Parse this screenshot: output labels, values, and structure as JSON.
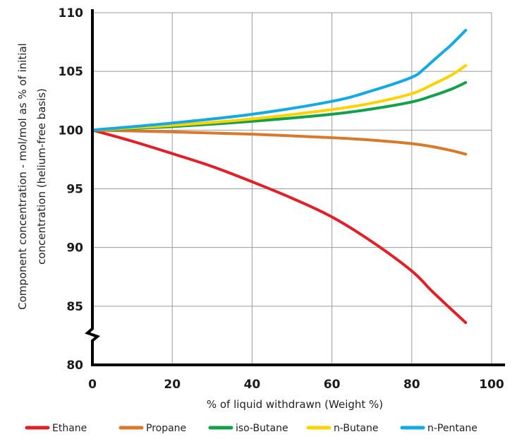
{
  "chart_data": {
    "type": "line",
    "xlabel": "% of liquid withdrawn (Weight %)",
    "ylabel_lines": [
      "Component concentration - mol/mol as % of initial",
      "concentration (helium-free basis)"
    ],
    "xlim": [
      0,
      100
    ],
    "ylim": [
      80,
      110
    ],
    "x_ticks": [
      0,
      20,
      40,
      60,
      80,
      100
    ],
    "y_ticks": [
      80,
      85,
      90,
      95,
      100,
      105,
      110
    ],
    "y_axis_break": true,
    "grid": true,
    "legend_position": "bottom",
    "series": [
      {
        "name": "Ethane",
        "color": "#e21f26",
        "x": [
          0,
          10,
          20,
          30,
          40,
          50,
          60,
          70,
          80,
          85,
          90,
          93.5
        ],
        "y": [
          100,
          99.05,
          98.0,
          96.9,
          95.6,
          94.2,
          92.6,
          90.5,
          88.0,
          86.3,
          84.7,
          83.6
        ]
      },
      {
        "name": "Propane",
        "color": "#d8792b",
        "x": [
          0,
          20,
          40,
          60,
          70,
          80,
          85,
          90,
          93.5
        ],
        "y": [
          100,
          99.85,
          99.65,
          99.35,
          99.15,
          98.85,
          98.6,
          98.25,
          97.95
        ]
      },
      {
        "name": "iso-Butane",
        "color": "#13a04a",
        "x": [
          0,
          20,
          40,
          60,
          70,
          80,
          85,
          90,
          93.5
        ],
        "y": [
          100,
          100.3,
          100.75,
          101.35,
          101.8,
          102.4,
          102.9,
          103.5,
          104.05
        ]
      },
      {
        "name": "n-Butane",
        "color": "#ffd200",
        "x": [
          0,
          20,
          40,
          60,
          70,
          80,
          85,
          90,
          93.5
        ],
        "y": [
          100,
          100.4,
          100.95,
          101.75,
          102.3,
          103.1,
          103.85,
          104.7,
          105.5
        ]
      },
      {
        "name": "n-Pentane",
        "color": "#13a9e2",
        "x": [
          0,
          20,
          40,
          60,
          70,
          80,
          83,
          85,
          88,
          90,
          93.5
        ],
        "y": [
          100,
          100.6,
          101.35,
          102.45,
          103.35,
          104.5,
          105.2,
          105.8,
          106.7,
          107.3,
          108.5
        ]
      }
    ]
  }
}
